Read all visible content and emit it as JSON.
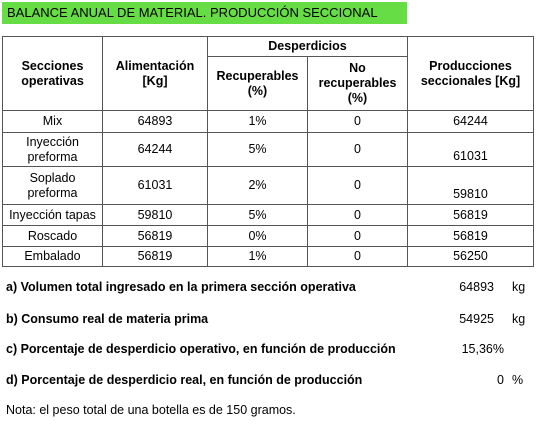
{
  "header": {
    "title": "BALANCE ANUAL DE MATERIAL. PRODUCCIÓN SECCIONAL"
  },
  "table": {
    "columns": {
      "secciones": "Secciones operativas",
      "alimentacion": "Alimentación [Kg]",
      "desperdicios": "Desperdicios",
      "recuperables": "Recuperables (%)",
      "no_recuperables": "No recuperables (%)",
      "producciones": "Producciones seccionales [Kg]"
    },
    "rows": [
      [
        "Mix",
        "64893",
        "1%",
        "0",
        "64244"
      ],
      [
        "Inyección preforma",
        "64244",
        "5%",
        "0",
        "61031"
      ],
      [
        "Soplado preforma",
        "61031",
        "2%",
        "0",
        "59810"
      ],
      [
        "Inyección tapas",
        "59810",
        "5%",
        "0",
        "56819"
      ],
      [
        "Roscado",
        "56819",
        "0%",
        "0",
        "56819"
      ],
      [
        "Embalado",
        "56819",
        "1%",
        "0",
        "56250"
      ]
    ]
  },
  "results": [
    {
      "label": "a) Volumen total ingresado en la primera sección operativa",
      "value": "64893",
      "unit": "kg"
    },
    {
      "label": "b) Consumo real de materia prima",
      "value": "54925",
      "unit": "kg"
    },
    {
      "label": "c) Porcentaje de desperdicio operativo, en función de producción",
      "value": "15,36%"
    },
    {
      "label": "d) Porcentaje de desperdicio real, en función de producción",
      "value": "0",
      "unit": "%"
    }
  ],
  "note": "Nota: el peso total de una botella es de 150 gramos."
}
